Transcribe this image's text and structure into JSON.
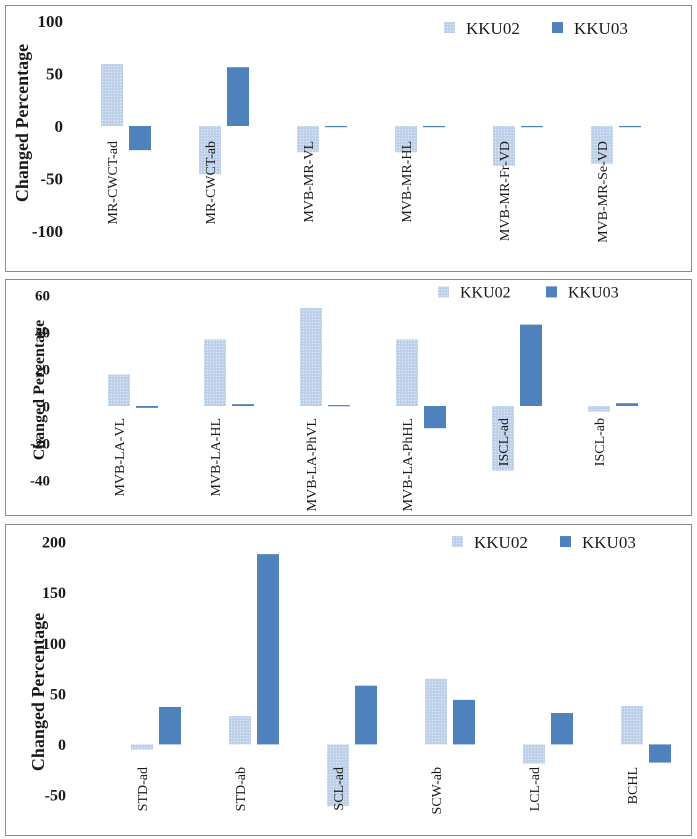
{
  "chart_data": [
    {
      "type": "bar",
      "ylabel": "Changed Percentage",
      "ylim": [
        -100,
        100
      ],
      "yticks": [
        "100",
        "50",
        "0",
        "-50",
        "-100"
      ],
      "categories": [
        "MR-CWCT-ad",
        "MR-CWCT-ab",
        "MVB-MR-VL",
        "MVB-MR-HL",
        "MVB-MR-Fr-VD",
        "MVB-MR-Se-VD"
      ],
      "series": [
        {
          "name": "KKU02",
          "values": [
            59,
            -46,
            -25,
            -25,
            -38,
            -36
          ],
          "color": "#bcd0ea"
        },
        {
          "name": "KKU03",
          "values": [
            -23,
            56,
            -1,
            -0.5,
            -1,
            -0.5
          ],
          "color": "#4f81bd"
        }
      ],
      "legend_position": "top-right",
      "grid": false
    },
    {
      "type": "bar",
      "ylabel": "Changed Percentage",
      "ylim": [
        -40,
        60
      ],
      "yticks": [
        "60",
        "40",
        "20",
        "0",
        "-20",
        "-40"
      ],
      "categories": [
        "MVB-LA-VL",
        "MVB-LA-HL",
        "MVB-LA-PhVL",
        "MVB-LA-PhHL",
        "ISCL-ad",
        "ISCL-ab"
      ],
      "series": [
        {
          "name": "KKU02",
          "values": [
            17,
            36,
            53,
            36,
            -35,
            -3
          ],
          "color": "#bcd0ea"
        },
        {
          "name": "KKU03",
          "values": [
            -1,
            1,
            0.5,
            -12,
            44,
            1.5
          ],
          "color": "#4f81bd"
        }
      ],
      "legend_position": "top-right",
      "grid": false
    },
    {
      "type": "bar",
      "ylabel": "Changed Percentage",
      "ylim": [
        -50,
        200
      ],
      "yticks": [
        "200",
        "150",
        "100",
        "50",
        "0",
        "-50"
      ],
      "categories": [
        "STD-ad",
        "STD-ab",
        "SCL-ad",
        "SCW-ab",
        "LCL-ad",
        "BCHL"
      ],
      "series": [
        {
          "name": "KKU02",
          "values": [
            -5,
            28,
            -61,
            65,
            -19,
            38
          ],
          "color": "#bcd0ea"
        },
        {
          "name": "KKU03",
          "values": [
            37,
            188,
            58,
            44,
            31,
            -18
          ],
          "color": "#4f81bd"
        }
      ],
      "legend_position": "top-right",
      "grid": false
    }
  ]
}
